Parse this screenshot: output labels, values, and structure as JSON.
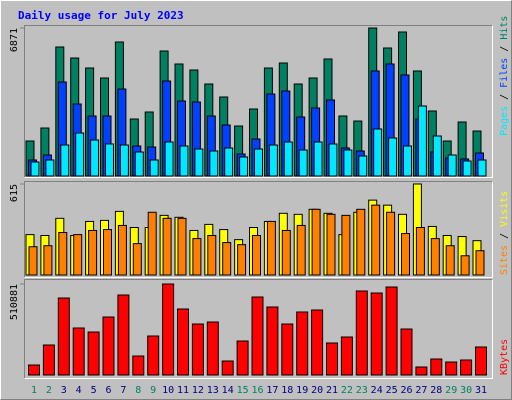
{
  "chart_data": [
    {
      "type": "bar",
      "title": "Daily usage for July 2023",
      "legend_separator": " / ",
      "ylim": [
        0,
        6871
      ],
      "yticks": [
        6871
      ],
      "series": [
        {
          "name": "Pages",
          "color": "#00e8ff",
          "values": [
            650,
            743,
            1439,
            1996,
            1671,
            1486,
            1439,
            1114,
            743,
            1578,
            1393,
            1253,
            1161,
            1300,
            882,
            1253,
            1439,
            1578,
            1207,
            1578,
            1486,
            1207,
            929,
            2182,
            1764,
            1393,
            3250,
            1857,
            975,
            696,
            743
          ]
        },
        {
          "name": "Files",
          "color": "#0040ff",
          "values": [
            743,
            975,
            4364,
            3343,
            2786,
            2786,
            4039,
            1393,
            1346,
            4410,
            3482,
            3436,
            2786,
            2368,
            1021,
            1718,
            3807,
            3946,
            2739,
            3157,
            3528,
            1300,
            1161,
            4875,
            5200,
            4689,
            2646,
            1114,
            836,
            789,
            1068
          ]
        },
        {
          "name": "Hits",
          "color": "#008060",
          "values": [
            1625,
            2228,
            5989,
            5478,
            5014,
            4550,
            6221,
            2646,
            2971,
            5803,
            5200,
            4921,
            4271,
            3668,
            2321,
            3110,
            5014,
            5246,
            4271,
            4550,
            5432,
            2786,
            2553,
            6871,
            5943,
            6685,
            4875,
            3018,
            1625,
            2507,
            2089
          ]
        }
      ]
    },
    {
      "type": "bar",
      "legend_separator": " / ",
      "ylim": [
        0,
        615
      ],
      "yticks": [
        615
      ],
      "series": [
        {
          "name": "Sites",
          "color": "#ff8000",
          "values": [
            191,
            198,
            287,
            273,
            301,
            307,
            335,
            212,
            424,
            383,
            383,
            246,
            267,
            219,
            205,
            267,
            362,
            301,
            335,
            444,
            410,
            403,
            444,
            472,
            424,
            280,
            321,
            246,
            198,
            130,
            164
          ]
        },
        {
          "name": "Visits",
          "color": "#ffff00",
          "values": [
            273,
            267,
            383,
            267,
            362,
            369,
            430,
            321,
            321,
            403,
            390,
            301,
            342,
            307,
            239,
            321,
            362,
            417,
            410,
            444,
            417,
            273,
            424,
            506,
            472,
            410,
            615,
            328,
            267,
            260,
            232
          ]
        }
      ]
    },
    {
      "type": "bar",
      "ylim": [
        0,
        510881
      ],
      "yticks": [
        510881
      ],
      "categories": [
        "1",
        "2",
        "3",
        "4",
        "5",
        "6",
        "7",
        "8",
        "9",
        "10",
        "11",
        "12",
        "13",
        "14",
        "15",
        "16",
        "17",
        "18",
        "19",
        "20",
        "21",
        "22",
        "23",
        "24",
        "25",
        "26",
        "27",
        "28",
        "29",
        "30",
        "31"
      ],
      "category_colors": [
        "#008060",
        "#008060",
        "#00007f",
        "#00007f",
        "#00007f",
        "#00007f",
        "#00007f",
        "#008060",
        "#008060",
        "#00007f",
        "#00007f",
        "#00007f",
        "#00007f",
        "#00007f",
        "#008060",
        "#008060",
        "#00007f",
        "#00007f",
        "#00007f",
        "#00007f",
        "#00007f",
        "#008060",
        "#008060",
        "#00007f",
        "#00007f",
        "#00007f",
        "#00007f",
        "#00007f",
        "#008060",
        "#008060",
        "#00007f"
      ],
      "series": [
        {
          "name": "KBytes",
          "color": "#ff0000",
          "values": [
            56141,
            168422,
            432283,
            263865,
            241409,
            325620,
            449126,
            106667,
            218953,
            510881,
            370533,
            286321,
            297549,
            78597,
            190882,
            437898,
            381761,
            286321,
            353691,
            364919,
            179652,
            213339,
            471582,
            460354,
            494038,
            258251,
            44913,
            89824,
            72983,
            84211,
            157196
          ]
        }
      ]
    }
  ]
}
